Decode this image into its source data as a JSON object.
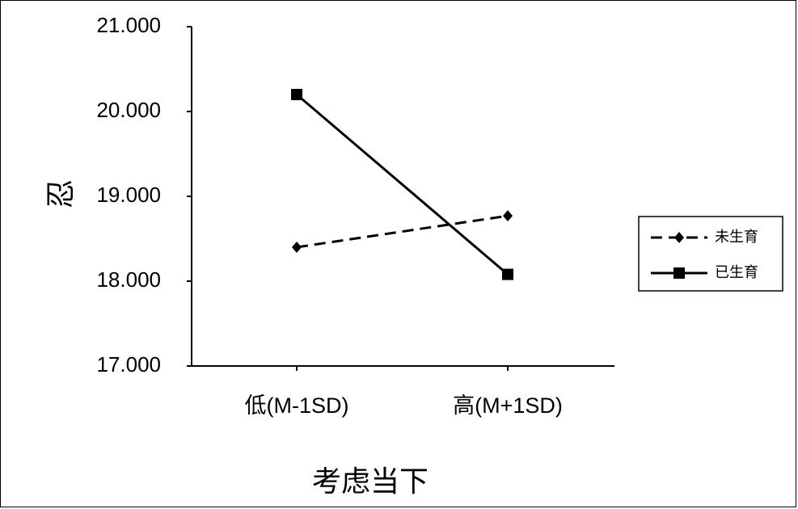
{
  "chart_data": {
    "type": "line",
    "categories": [
      "低(M-1SD)",
      "高(M+1SD)"
    ],
    "series": [
      {
        "name": "未生育",
        "values": [
          18.4,
          18.77
        ],
        "style": "dashed",
        "marker": "diamond",
        "color": "#000000"
      },
      {
        "name": "已生育",
        "values": [
          20.2,
          18.08
        ],
        "style": "solid",
        "marker": "square",
        "color": "#000000"
      }
    ],
    "xlabel": "考虑当下",
    "ylabel": "忍",
    "ylim": [
      17,
      21
    ],
    "yticks": [
      "17.000",
      "18.000",
      "19.000",
      "20.000",
      "21.000"
    ],
    "grid": false,
    "legend_position": "right"
  }
}
